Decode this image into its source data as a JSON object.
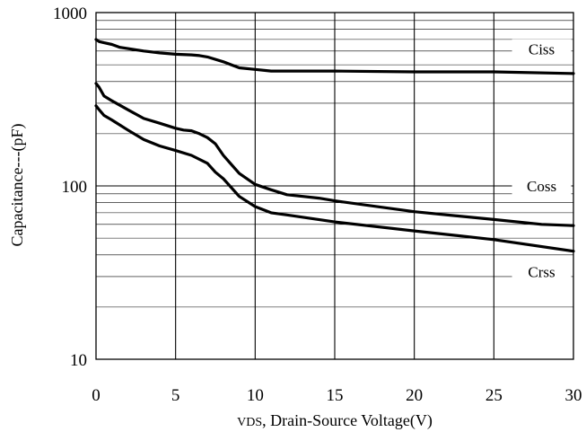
{
  "chart_data": {
    "type": "line",
    "xlabel": "VDS, Drain-Source Voltage(V)",
    "xlabel_parts": {
      "sub": "VDS",
      "rest": ", Drain-Source Voltage(V)"
    },
    "ylabel": "Capacitance---(pF)",
    "xlim": [
      0,
      30
    ],
    "ylim": [
      10,
      1000
    ],
    "y_scale": "log",
    "grid": true,
    "x_ticks": [
      0,
      5,
      10,
      15,
      20,
      25,
      30
    ],
    "x_tick_labels": [
      "0",
      "5",
      "10",
      "15",
      "20",
      "25",
      "30"
    ],
    "y_ticks": [
      10,
      100,
      1000
    ],
    "y_tick_labels": [
      "10",
      "100",
      "1000"
    ],
    "series": [
      {
        "name": "Ciss",
        "x": [
          0,
          0.2,
          0.5,
          1,
          1.5,
          2,
          3,
          4,
          5,
          6,
          6.5,
          7,
          8,
          9,
          10,
          11,
          15,
          20,
          25,
          30
        ],
        "y": [
          700,
          680,
          670,
          655,
          630,
          620,
          600,
          585,
          575,
          570,
          565,
          555,
          520,
          480,
          470,
          460,
          460,
          455,
          455,
          445
        ]
      },
      {
        "name": "Coss",
        "x": [
          0,
          0.2,
          0.5,
          1,
          2,
          3,
          4,
          5,
          5.5,
          6,
          6.5,
          7,
          7.5,
          8,
          9,
          10,
          11,
          12,
          13,
          14,
          15,
          20,
          25,
          28,
          30
        ],
        "y": [
          390,
          370,
          330,
          310,
          275,
          245,
          230,
          215,
          210,
          208,
          200,
          190,
          175,
          150,
          118,
          102,
          95,
          89,
          87,
          85,
          82,
          71,
          64,
          60,
          59
        ]
      },
      {
        "name": "Crss",
        "x": [
          0,
          0.2,
          0.5,
          1,
          2,
          3,
          4,
          5,
          6,
          7,
          7.5,
          8,
          9,
          10,
          11,
          12,
          15,
          20,
          25,
          30
        ],
        "y": [
          290,
          275,
          255,
          240,
          210,
          185,
          170,
          160,
          150,
          135,
          120,
          110,
          87,
          76,
          70,
          68,
          62,
          55,
          49,
          42
        ]
      }
    ],
    "series_labels": [
      "Ciss",
      "Coss",
      "Crss"
    ]
  }
}
